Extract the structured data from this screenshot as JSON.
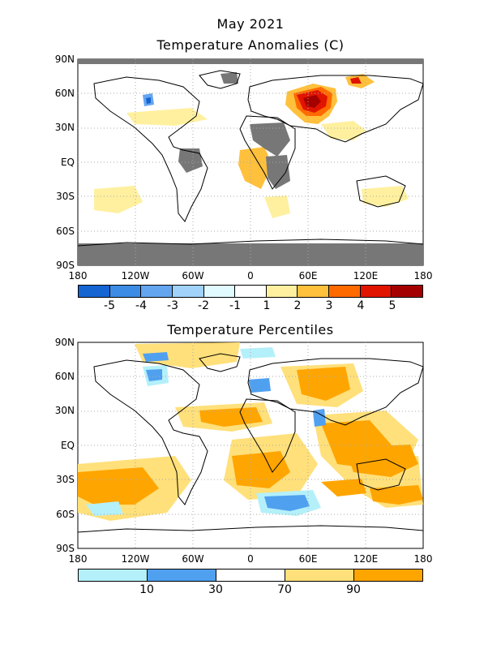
{
  "header": {
    "date": "May 2021",
    "title_top": "Temperature Anomalies (C)",
    "title_bottom": "Temperature Percentiles"
  },
  "axes": {
    "lat_labels": [
      "90N",
      "60N",
      "30N",
      "EQ",
      "30S",
      "60S",
      "90S"
    ],
    "lon_labels": [
      "180",
      "120W",
      "60W",
      "0",
      "60E",
      "120E",
      "180"
    ]
  },
  "anomaly_colorbar": {
    "colors": [
      "#1464d2",
      "#3c8ce6",
      "#64a5f0",
      "#a0d2fa",
      "#e1faff",
      "#ffffff",
      "#fff0a0",
      "#ffc03c",
      "#ff6a00",
      "#e11400",
      "#a50000"
    ],
    "labels": [
      "-5",
      "-4",
      "-3",
      "-2",
      "-1",
      "1",
      "2",
      "3",
      "4",
      "5"
    ]
  },
  "percentile_colorbar": {
    "colors": [
      "#b4f0fa",
      "#50a0f0",
      "#ffffff",
      "#ffe07a",
      "#ffa500"
    ],
    "labels": [
      "10",
      "30",
      "70",
      "90"
    ]
  },
  "map_colors": {
    "missing": "#777777",
    "land_outline": "#000000",
    "grid": "#aaaaaa"
  }
}
